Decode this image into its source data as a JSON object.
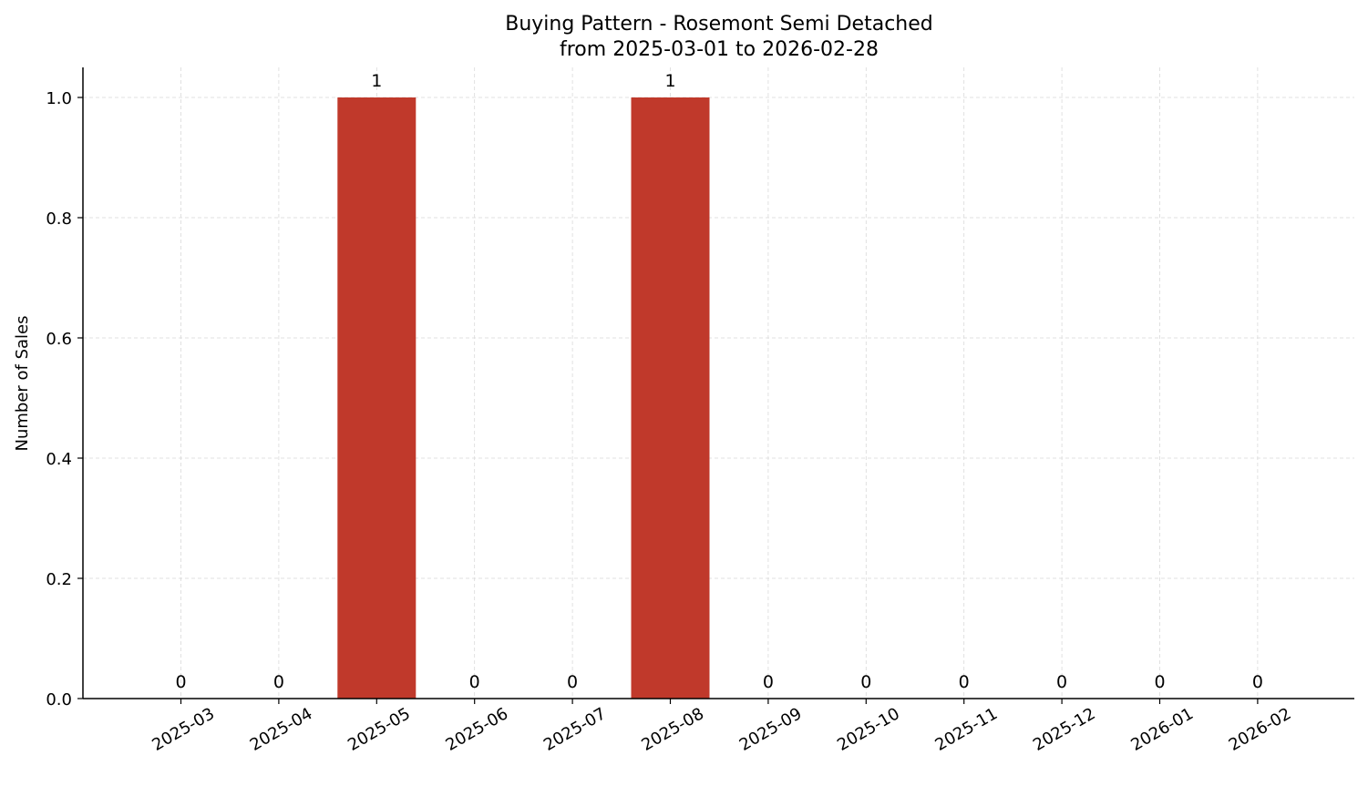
{
  "chart_data": {
    "type": "bar",
    "title": "Buying Pattern - Rosemont Semi Detached",
    "subtitle": "from 2025-03-01 to 2026-02-28",
    "xlabel": "",
    "ylabel": "Number of Sales",
    "categories": [
      "2025-03",
      "2025-04",
      "2025-05",
      "2025-06",
      "2025-07",
      "2025-08",
      "2025-09",
      "2025-10",
      "2025-11",
      "2025-12",
      "2026-01",
      "2026-02"
    ],
    "values": [
      0,
      0,
      1,
      0,
      0,
      1,
      0,
      0,
      0,
      0,
      0,
      0
    ],
    "data_labels": [
      "0",
      "0",
      "1",
      "0",
      "0",
      "1",
      "0",
      "0",
      "0",
      "0",
      "0",
      "0"
    ],
    "ylim": [
      0,
      1.05
    ],
    "yticks": [
      0.0,
      0.2,
      0.4,
      0.6,
      0.8,
      1.0
    ],
    "ytick_labels": [
      "0.0",
      "0.2",
      "0.4",
      "0.6",
      "0.8",
      "1.0"
    ],
    "grid": true,
    "bar_color": "#c0392b",
    "grid_color": "#d9d9d9"
  }
}
